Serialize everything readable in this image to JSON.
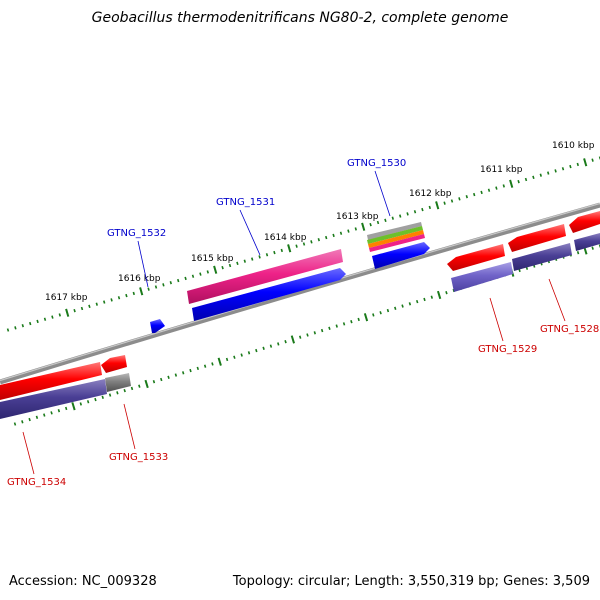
{
  "title": "Geobacillus thermodenitrificans NG80-2, complete genome",
  "footer": {
    "accession": "Accession: NC_009328",
    "stats": "Topology: circular; Length: 3,550,319 bp; Genes: 3,509"
  },
  "colors": {
    "backbone": "#808080",
    "tick": "#1a7a1a",
    "forward_label": "#0000cc",
    "reverse_label": "#cc0000",
    "red": "#ff0000",
    "blue": "#0000ff",
    "magenta": "#ee2288",
    "purple": "#4a3f95",
    "lavender": "#7063c8",
    "gray": "#808080"
  },
  "ruler": {
    "outer": [
      "1617 kbp",
      "1616 kbp",
      "1615 kbp",
      "1614 kbp",
      "1613 kbp",
      "1612 kbp",
      "1611 kbp",
      "1610 kbp"
    ]
  },
  "genes": {
    "forward": [
      "GTNG_1532",
      "GTNG_1531",
      "GTNG_1530"
    ],
    "reverse": [
      "GTNG_1534",
      "GTNG_1533",
      "GTNG_1529",
      "GTNG_1528"
    ]
  }
}
